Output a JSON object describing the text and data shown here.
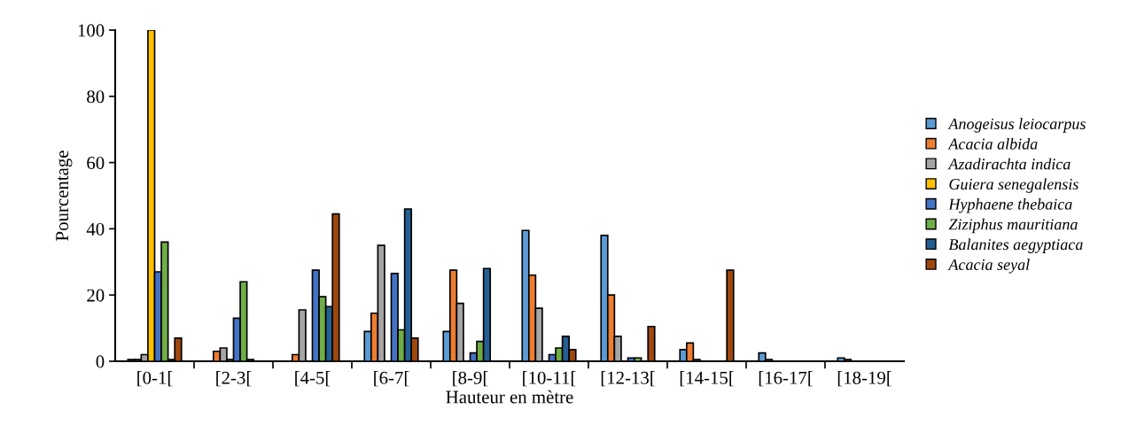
{
  "chart_data": {
    "type": "bar",
    "xlabel": "Hauteur en mètre",
    "ylabel": "Pourcentage",
    "categories": [
      "[0-1[",
      "[2-3[",
      "[4-5[",
      "[6-7[",
      "[8-9[",
      "[10-11[",
      "[12-13[",
      "[14-15[",
      "[16-17[",
      "[18-19["
    ],
    "series": [
      {
        "name": "Anogeisus leiocarpus",
        "color": "#5b9bd5",
        "values": [
          0.5,
          null,
          null,
          9,
          9,
          39.5,
          38,
          3.5,
          2.5,
          1
        ]
      },
      {
        "name": "Acacia albida",
        "color": "#ed7d31",
        "values": [
          0.5,
          3,
          2,
          14.5,
          27.5,
          26,
          20,
          5.5,
          0.5,
          0.5
        ]
      },
      {
        "name": "Azadirachta indica",
        "color": "#a5a5a5",
        "values": [
          2,
          4,
          15.5,
          35,
          17.5,
          16,
          7.5,
          0.5,
          null,
          null
        ]
      },
      {
        "name": "Guiera senegalensis",
        "color": "#ffc000",
        "values": [
          100,
          0.5,
          null,
          null,
          null,
          null,
          null,
          null,
          null,
          null
        ]
      },
      {
        "name": "Hyphaene thebaica",
        "color": "#4472c4",
        "values": [
          27,
          13,
          27.5,
          26.5,
          2.5,
          2,
          1,
          null,
          null,
          null
        ]
      },
      {
        "name": "Ziziphus mauritiana",
        "color": "#70ad47",
        "values": [
          36,
          24,
          19.5,
          9.5,
          6,
          4,
          1,
          null,
          null,
          null
        ]
      },
      {
        "name": "Balanites aegyptiaca",
        "color": "#255e91",
        "values": [
          0.5,
          0.5,
          16.5,
          46,
          28,
          7.5,
          null,
          null,
          null,
          null
        ]
      },
      {
        "name": "Acacia seyal",
        "color": "#9e480e",
        "values": [
          7,
          null,
          44.5,
          7,
          null,
          3.5,
          10.5,
          27.5,
          null,
          null
        ]
      }
    ],
    "ylim": [
      0,
      100
    ],
    "yticks": [
      0,
      20,
      40,
      60,
      80,
      100
    ],
    "grid": false,
    "legend": "right"
  }
}
